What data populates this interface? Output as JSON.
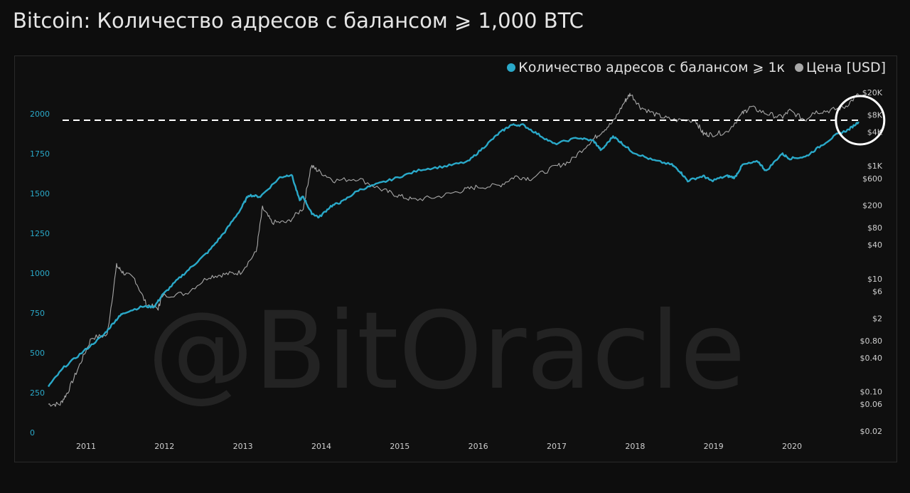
{
  "title": "Bitcoin: Количество адресов с балансом ⩾ 1,000 BTC",
  "watermark": "@BitOracle",
  "legend": {
    "addresses_label": "Количество адресов с балансом ⩾ 1к",
    "price_label": "Цена [USD]"
  },
  "colors": {
    "addresses": "#2aa9c9",
    "price": "#a8a8a8",
    "background": "#0d0d0d",
    "threshold_line": "#ffffff"
  },
  "chart_data": {
    "type": "line",
    "x_ticks": [
      "2011",
      "2012",
      "2013",
      "2014",
      "2015",
      "2016",
      "2017",
      "2018",
      "2019",
      "2020"
    ],
    "y_left_ticks": [
      0,
      250,
      500,
      750,
      1000,
      1250,
      1500,
      1750,
      2000
    ],
    "y_left_range": [
      0,
      2000
    ],
    "y_right_ticks": [
      {
        "value": 20000,
        "label": "$20K"
      },
      {
        "value": 8000,
        "label": "$8K"
      },
      {
        "value": 4000,
        "label": "$4K"
      },
      {
        "value": 1000,
        "label": "$1K"
      },
      {
        "value": 600,
        "label": "$600"
      },
      {
        "value": 200,
        "label": "$200"
      },
      {
        "value": 80,
        "label": "$80"
      },
      {
        "value": 40,
        "label": "$40"
      },
      {
        "value": 10,
        "label": "$10"
      },
      {
        "value": 6,
        "label": "$6"
      },
      {
        "value": 2,
        "label": "$2"
      },
      {
        "value": 0.8,
        "label": "$0.80"
      },
      {
        "value": 0.4,
        "label": "$0.40"
      },
      {
        "value": 0.1,
        "label": "$0.10"
      },
      {
        "value": 0.06,
        "label": "$0.06"
      },
      {
        "value": 0.02,
        "label": "$0.02"
      }
    ],
    "y_right_scale": "log",
    "y_right_range": [
      0.02,
      20000
    ],
    "threshold": 1960,
    "series": [
      {
        "name": "Количество адресов с балансом ⩾ 1к",
        "axis": "left",
        "x": [
          2010.55,
          2010.75,
          2011.0,
          2011.25,
          2011.4,
          2011.5,
          2011.75,
          2011.9,
          2012.0,
          2012.2,
          2012.4,
          2012.6,
          2012.8,
          2013.0,
          2013.1,
          2013.25,
          2013.5,
          2013.65,
          2013.75,
          2013.8,
          2013.9,
          2014.0,
          2014.15,
          2014.3,
          2014.5,
          2014.75,
          2015.0,
          2015.3,
          2015.6,
          2015.9,
          2016.1,
          2016.3,
          2016.45,
          2016.6,
          2016.8,
          2017.0,
          2017.3,
          2017.5,
          2017.6,
          2017.75,
          2017.85,
          2018.0,
          2018.25,
          2018.5,
          2018.6,
          2018.7,
          2018.9,
          2019.0,
          2019.2,
          2019.3,
          2019.4,
          2019.6,
          2019.7,
          2019.9,
          2020.0,
          2020.2,
          2020.4,
          2020.6,
          2020.75,
          2020.88
        ],
        "y": [
          290,
          410,
          510,
          610,
          700,
          750,
          790,
          790,
          860,
          960,
          1050,
          1140,
          1260,
          1400,
          1490,
          1480,
          1600,
          1620,
          1460,
          1480,
          1380,
          1350,
          1420,
          1450,
          1520,
          1560,
          1600,
          1650,
          1670,
          1700,
          1790,
          1880,
          1930,
          1930,
          1870,
          1810,
          1850,
          1830,
          1770,
          1860,
          1820,
          1760,
          1710,
          1680,
          1640,
          1580,
          1610,
          1580,
          1610,
          1600,
          1680,
          1700,
          1640,
          1750,
          1720,
          1730,
          1800,
          1870,
          1900,
          1950
        ]
      },
      {
        "name": "Цена [USD]",
        "axis": "right",
        "x": [
          2010.55,
          2010.7,
          2010.8,
          2010.95,
          2011.1,
          2011.3,
          2011.42,
          2011.5,
          2011.65,
          2011.8,
          2011.95,
          2012.0,
          2012.3,
          2012.6,
          2012.8,
          2013.0,
          2013.2,
          2013.28,
          2013.4,
          2013.6,
          2013.8,
          2013.9,
          2014.0,
          2014.2,
          2014.5,
          2014.8,
          2015.0,
          2015.2,
          2015.5,
          2015.8,
          2016.0,
          2016.3,
          2016.5,
          2016.7,
          2017.0,
          2017.2,
          2017.45,
          2017.6,
          2017.75,
          2017.9,
          2017.97,
          2018.1,
          2018.3,
          2018.5,
          2018.8,
          2018.9,
          2019.0,
          2019.2,
          2019.4,
          2019.5,
          2019.7,
          2019.9,
          2020.0,
          2020.2,
          2020.3,
          2020.5,
          2020.7,
          2020.88
        ],
        "y": [
          0.06,
          0.06,
          0.1,
          0.3,
          0.9,
          1.0,
          17,
          13,
          10,
          3.5,
          3.0,
          5,
          5.5,
          11,
          12,
          13,
          30,
          180,
          100,
          100,
          180,
          1000,
          800,
          550,
          600,
          380,
          300,
          250,
          280,
          360,
          420,
          450,
          650,
          600,
          950,
          1200,
          2600,
          4000,
          6000,
          14000,
          19000,
          11000,
          8000,
          6500,
          6400,
          3700,
          3600,
          4000,
          8500,
          11000,
          8500,
          7200,
          9500,
          6500,
          9000,
          9500,
          11000,
          18500
        ]
      }
    ]
  }
}
